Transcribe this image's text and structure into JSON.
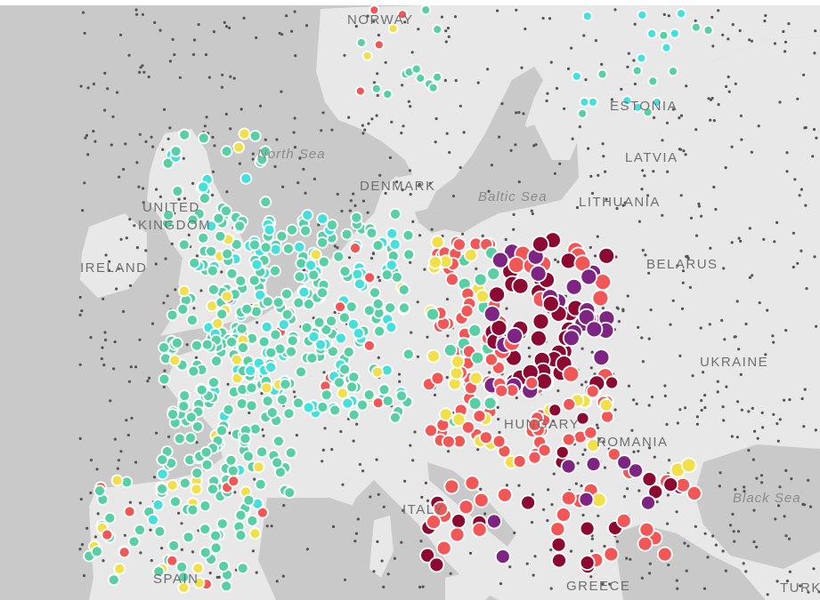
{
  "map": {
    "country_labels": [
      {
        "id": "norway",
        "text": "NORWAY"
      },
      {
        "id": "estonia",
        "text": "ESTONIA"
      },
      {
        "id": "latvia",
        "text": "LATVIA"
      },
      {
        "id": "lithuania",
        "text": "LITHUANIA"
      },
      {
        "id": "belarus",
        "text": "BELARUS"
      },
      {
        "id": "ukraine",
        "text": "UKRAINE"
      },
      {
        "id": "denmark",
        "text": "DENMARK"
      },
      {
        "id": "united",
        "text": "UNITED"
      },
      {
        "id": "kingdom",
        "text": "KINGDOM"
      },
      {
        "id": "ireland",
        "text": "IRELAND"
      },
      {
        "id": "hungary",
        "text": "HUNGARY"
      },
      {
        "id": "romania",
        "text": "ROMANIA"
      },
      {
        "id": "italy",
        "text": "ITALY"
      },
      {
        "id": "spain",
        "text": "SPAIN"
      },
      {
        "id": "greece",
        "text": "GREECE"
      },
      {
        "id": "turkey",
        "text": "TURK"
      }
    ],
    "sea_labels": [
      {
        "id": "north-sea",
        "text": "North Sea"
      },
      {
        "id": "baltic-sea",
        "text": "Baltic Sea"
      },
      {
        "id": "black-sea",
        "text": "Black Sea"
      }
    ],
    "colors": {
      "land": "#e8e8e8",
      "water": "#c9c9c9",
      "station_small": "#555555",
      "cyan": "#45dfdc",
      "teal": "#58cfa5",
      "yellow": "#f1e04a",
      "red": "#f25757",
      "dark_red": "#8c0a32",
      "purple": "#7e2482"
    }
  }
}
